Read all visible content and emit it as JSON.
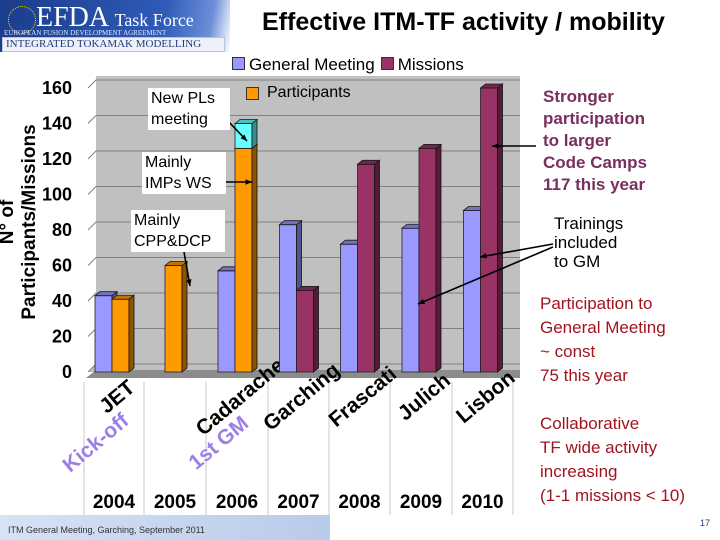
{
  "header": {
    "logo_main": "EFDA",
    "logo_sub": "Task Force",
    "logo_org": "EUROPEAN FUSION DEVELOPMENT AGREEMENT",
    "logo_band": "INTEGRATED TOKAMAK MODELLING",
    "title": "Effective ITM-TF activity / mobility"
  },
  "chart_data": {
    "type": "bar",
    "ylabel": "N° of Participants/Missions",
    "ylim": [
      0,
      160
    ],
    "yticks": [
      0,
      20,
      40,
      60,
      80,
      100,
      120,
      140,
      160
    ],
    "grid": true,
    "legend_placement": "top",
    "categories": [
      "2004",
      "2005",
      "2006",
      "2007",
      "2008",
      "2009",
      "2010"
    ],
    "locations": [
      "JET",
      "",
      "Cadarache",
      "Garching",
      "Frascati",
      "Julich",
      "Lisbon"
    ],
    "location_notes": [
      "Kick-off",
      "",
      "1st GM",
      "",
      "",
      "",
      ""
    ],
    "series": [
      {
        "name": "General Meeting",
        "color": "#9999ff",
        "values": [
          43,
          null,
          57,
          83,
          72,
          81,
          91
        ]
      },
      {
        "name": "Participants",
        "color": "#ff9900",
        "values": [
          41,
          60,
          126,
          null,
          null,
          null,
          null
        ]
      },
      {
        "name": "",
        "color": "#66ffff",
        "values": [
          null,
          null,
          14,
          null,
          null,
          null,
          null
        ]
      },
      {
        "name": "Missions",
        "color": "#993366",
        "values": [
          null,
          null,
          null,
          46,
          117,
          126,
          160
        ]
      }
    ],
    "annotations": [
      "New PLs meeting",
      "Mainly IMPs WS",
      "Mainly CPP&DCP"
    ]
  },
  "side_notes": {
    "code_camps": [
      "Stronger",
      "participation",
      "to larger",
      "Code Camps",
      "117 this year"
    ],
    "trainings": [
      "Trainings",
      "included",
      "to GM"
    ],
    "gm": [
      "Participation to",
      "General Meeting",
      "~ const",
      "75 this year"
    ],
    "collab": [
      "Collaborative",
      "TF wide activity",
      "increasing",
      "(1-1 missions < 10)"
    ]
  },
  "footer": {
    "text": "ITM General Meeting, Garching, September 2011",
    "page": "17"
  }
}
